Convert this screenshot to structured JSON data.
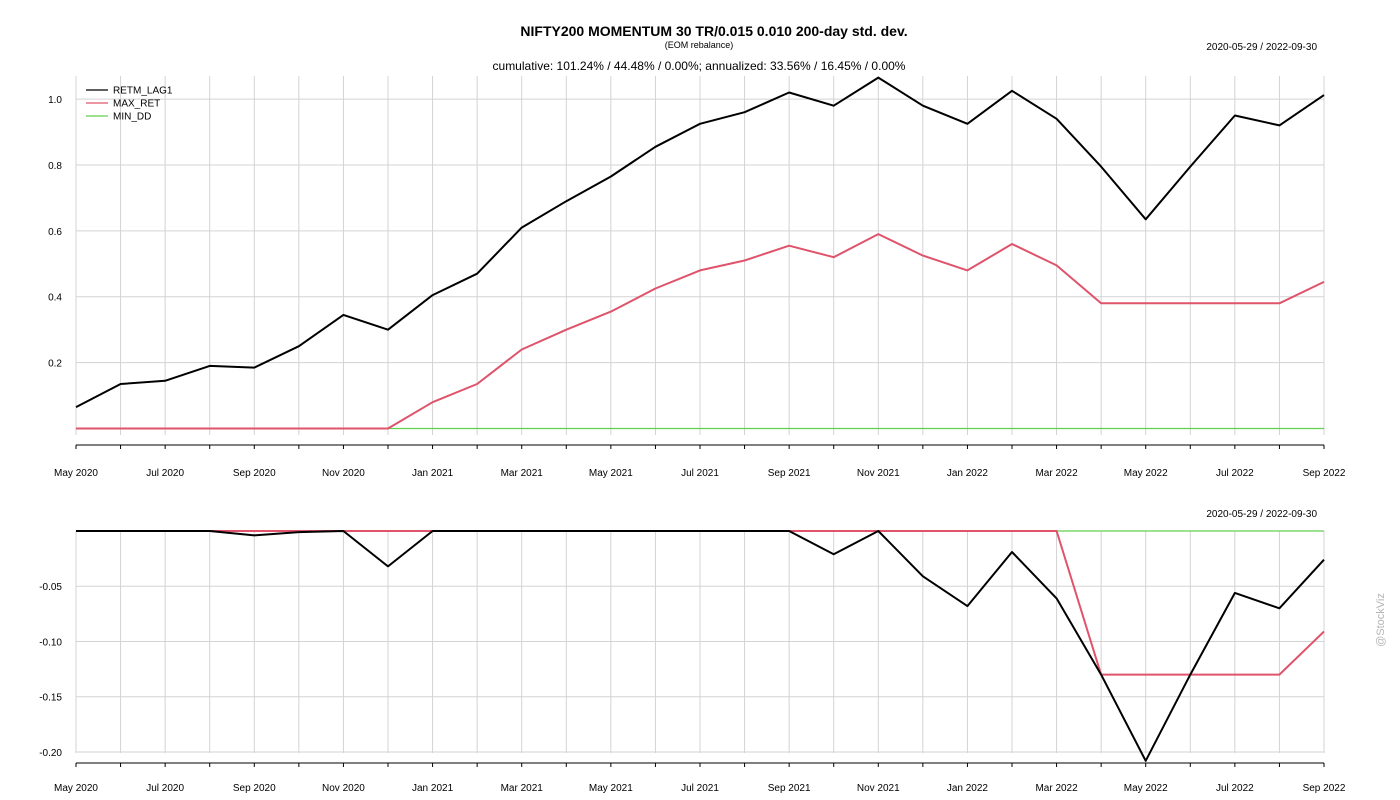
{
  "chart_data": {
    "title": "NIFTY200 MOMENTUM 30 TR/0.015 0.010 200-day std. dev.",
    "subtitle": "(EOM rebalance)",
    "stats_line": "cumulative: 101.24% / 44.48% / 0.00%; annualized: 33.56% / 16.45% / 0.00%",
    "date_range": "2020-05-29 / 2022-09-30",
    "watermark": "@StockViz",
    "x_labels": [
      "May 2020",
      "Jul 2020",
      "Sep 2020",
      "Nov 2020",
      "Jan 2021",
      "Mar 2021",
      "May 2021",
      "Jul 2021",
      "Sep 2021",
      "Nov 2021",
      "Jan 2022",
      "Mar 2022",
      "May 2022",
      "Jul 2022",
      "Sep 2022"
    ],
    "x_label_month_index": [
      0,
      2,
      4,
      6,
      8,
      10,
      12,
      14,
      16,
      18,
      20,
      22,
      24,
      26,
      28
    ],
    "colors": {
      "RETM_LAG1": "#000000",
      "MAX_RET": "#DF536B",
      "MIN_DD": "#61D04F",
      "grid": "#d3d3d3"
    },
    "panels": [
      {
        "type": "line",
        "name": "cumulative returns",
        "ylim": [
          -0.05,
          1.07
        ],
        "yticks": [
          0.2,
          0.4,
          0.6,
          0.8,
          1.0
        ],
        "ytick_labels": [
          "0.2",
          "0.4",
          "0.6",
          "0.8",
          "1.0"
        ],
        "legend_position": "top-left",
        "series": [
          {
            "name": "RETM_LAG1",
            "values": [
              0.065,
              0.135,
              0.145,
              0.19,
              0.185,
              0.25,
              0.345,
              0.3,
              0.405,
              0.47,
              0.61,
              0.69,
              0.765,
              0.855,
              0.925,
              0.96,
              1.02,
              0.98,
              1.065,
              0.98,
              0.925,
              1.025,
              0.94,
              0.795,
              0.635,
              0.795,
              0.95,
              0.92,
              1.012
            ]
          },
          {
            "name": "MAX_RET",
            "values": [
              0,
              0,
              0,
              0,
              0,
              0,
              0,
              0,
              0.08,
              0.135,
              0.24,
              0.3,
              0.355,
              0.425,
              0.48,
              0.51,
              0.555,
              0.52,
              0.59,
              0.525,
              0.48,
              0.56,
              0.495,
              0.38,
              0.38,
              0.38,
              0.38,
              0.38,
              0.445
            ]
          },
          {
            "name": "MIN_DD",
            "values": [
              0,
              0,
              0,
              0,
              0,
              0,
              0,
              0,
              0,
              0,
              0,
              0,
              0,
              0,
              0,
              0,
              0,
              0,
              0,
              0,
              0,
              0,
              0,
              0,
              0,
              0,
              0,
              0,
              0
            ]
          }
        ]
      },
      {
        "type": "line",
        "name": "drawdowns",
        "ylim": [
          -0.21,
          0.0
        ],
        "yticks": [
          -0.05,
          -0.1,
          -0.15,
          -0.2
        ],
        "ytick_labels": [
          "-0.05",
          "-0.10",
          "-0.15",
          "-0.20"
        ],
        "series": [
          {
            "name": "RETM_LAG1",
            "values": [
              0,
              0,
              0,
              0,
              -0.004,
              -0.001,
              0,
              -0.032,
              0,
              0,
              0,
              0,
              0,
              0,
              0,
              0,
              0,
              -0.021,
              0,
              -0.041,
              -0.068,
              -0.019,
              -0.061,
              -0.13,
              -0.208,
              -0.13,
              -0.056,
              -0.07,
              -0.026
            ]
          },
          {
            "name": "MAX_RET",
            "values": [
              0,
              0,
              0,
              0,
              0,
              0,
              0,
              0,
              0,
              0,
              0,
              0,
              0,
              0,
              0,
              0,
              0,
              0,
              0,
              0,
              0,
              0,
              0,
              -0.13,
              -0.13,
              -0.13,
              -0.13,
              -0.13,
              -0.091
            ]
          },
          {
            "name": "MIN_DD",
            "values": [
              0,
              0,
              0,
              0,
              0,
              0,
              0,
              0,
              0,
              0,
              0,
              0,
              0,
              0,
              0,
              0,
              0,
              0,
              0,
              0,
              0,
              0,
              0,
              0,
              0,
              0,
              0,
              0,
              0
            ]
          }
        ]
      }
    ]
  }
}
